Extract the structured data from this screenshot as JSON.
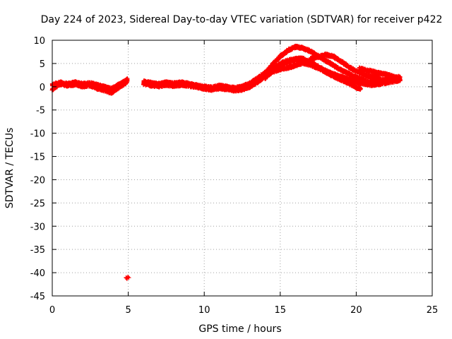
{
  "chart_data": {
    "type": "scatter",
    "title": "Day 224 of 2023, Sidereal Day-to-day VTEC variation (SDTVAR) for receiver p422",
    "xlabel": "GPS time / hours",
    "ylabel": "SDTVAR / TECUs",
    "xlim": [
      0,
      25
    ],
    "ylim": [
      -45,
      10
    ],
    "xticks": [
      0,
      5,
      10,
      15,
      20,
      25
    ],
    "yticks": [
      10,
      5,
      0,
      -5,
      -10,
      -15,
      -20,
      -25,
      -30,
      -35,
      -40,
      -45
    ],
    "grid": true,
    "series": [
      {
        "name": "SDTVAR",
        "color": "#ff0000",
        "marker": "plus",
        "tracks": [
          [
            [
              0.0,
              -0.6
            ],
            [
              0.5,
              0.6
            ],
            [
              1.0,
              0.3
            ],
            [
              1.5,
              0.5
            ],
            [
              2.0,
              0.1
            ],
            [
              2.5,
              0.3
            ],
            [
              3.0,
              -0.4
            ],
            [
              3.5,
              -0.8
            ],
            [
              3.9,
              -1.3
            ],
            [
              4.3,
              -0.3
            ],
            [
              4.7,
              0.5
            ],
            [
              4.95,
              1.2
            ]
          ],
          [
            [
              0.0,
              0.4
            ],
            [
              0.5,
              0.9
            ],
            [
              1.0,
              0.6
            ],
            [
              1.5,
              0.9
            ],
            [
              2.0,
              0.6
            ],
            [
              2.5,
              0.8
            ],
            [
              3.0,
              0.3
            ],
            [
              3.5,
              -0.1
            ],
            [
              3.9,
              -0.5
            ],
            [
              4.3,
              0.3
            ],
            [
              4.7,
              1.0
            ],
            [
              4.95,
              1.6
            ]
          ],
          [
            [
              6.0,
              0.7
            ],
            [
              6.5,
              0.3
            ],
            [
              7.0,
              0.1
            ],
            [
              7.5,
              0.4
            ],
            [
              8.0,
              0.2
            ],
            [
              8.5,
              0.4
            ],
            [
              9.0,
              0.2
            ],
            [
              9.5,
              0.0
            ],
            [
              10.0,
              -0.4
            ],
            [
              10.5,
              -0.6
            ],
            [
              11.0,
              -0.3
            ],
            [
              11.5,
              -0.5
            ],
            [
              12.0,
              -0.8
            ],
            [
              12.5,
              -0.6
            ],
            [
              13.0,
              0.0
            ],
            [
              13.5,
              1.0
            ],
            [
              14.0,
              2.2
            ],
            [
              14.5,
              3.2
            ],
            [
              15.0,
              3.8
            ],
            [
              15.5,
              4.1
            ],
            [
              16.0,
              4.6
            ],
            [
              16.5,
              5.1
            ],
            [
              17.0,
              4.7
            ],
            [
              17.5,
              4.0
            ],
            [
              18.0,
              3.3
            ],
            [
              18.5,
              2.7
            ],
            [
              19.0,
              2.1
            ],
            [
              19.5,
              1.5
            ],
            [
              20.0,
              1.0
            ],
            [
              20.5,
              0.7
            ],
            [
              21.0,
              0.4
            ],
            [
              21.5,
              0.6
            ],
            [
              22.0,
              0.9
            ],
            [
              22.5,
              1.2
            ],
            [
              22.9,
              1.3
            ]
          ],
          [
            [
              6.0,
              1.1
            ],
            [
              6.5,
              0.8
            ],
            [
              7.0,
              0.6
            ],
            [
              7.5,
              0.9
            ],
            [
              8.0,
              0.7
            ],
            [
              8.5,
              0.9
            ],
            [
              9.0,
              0.6
            ],
            [
              9.5,
              0.3
            ],
            [
              10.0,
              0.0
            ],
            [
              10.5,
              -0.2
            ],
            [
              11.0,
              0.2
            ],
            [
              11.5,
              0.0
            ],
            [
              12.0,
              -0.3
            ],
            [
              12.5,
              0.0
            ],
            [
              13.0,
              0.7
            ],
            [
              13.5,
              1.8
            ],
            [
              14.0,
              3.0
            ],
            [
              14.5,
              4.0
            ],
            [
              15.0,
              4.7
            ],
            [
              15.5,
              5.3
            ],
            [
              16.0,
              5.8
            ],
            [
              16.5,
              5.5
            ],
            [
              17.0,
              5.2
            ],
            [
              17.5,
              4.3
            ],
            [
              18.0,
              3.4
            ],
            [
              18.5,
              2.6
            ],
            [
              19.0,
              2.1
            ],
            [
              19.5,
              1.6
            ],
            [
              20.0,
              1.3
            ],
            [
              20.5,
              1.2
            ],
            [
              21.0,
              1.0
            ],
            [
              21.5,
              1.3
            ],
            [
              22.0,
              1.6
            ],
            [
              22.5,
              1.9
            ],
            [
              22.9,
              2.1
            ]
          ],
          [
            [
              13.5,
              1.0
            ],
            [
              14.0,
              2.8
            ],
            [
              14.5,
              4.8
            ],
            [
              15.0,
              6.5
            ],
            [
              15.5,
              7.8
            ],
            [
              16.0,
              8.6
            ],
            [
              16.5,
              8.3
            ],
            [
              17.0,
              7.6
            ],
            [
              17.5,
              6.6
            ],
            [
              18.0,
              5.6
            ],
            [
              18.5,
              4.6
            ],
            [
              19.0,
              3.6
            ],
            [
              19.5,
              2.8
            ],
            [
              20.0,
              2.0
            ],
            [
              20.5,
              1.6
            ]
          ],
          [
            [
              14.0,
              1.8
            ],
            [
              14.5,
              3.6
            ],
            [
              15.0,
              5.0
            ],
            [
              15.5,
              5.6
            ],
            [
              16.0,
              6.0
            ],
            [
              16.5,
              6.0
            ],
            [
              17.0,
              5.3
            ],
            [
              17.5,
              4.2
            ],
            [
              18.0,
              3.1
            ],
            [
              18.5,
              2.3
            ],
            [
              19.0,
              1.5
            ],
            [
              19.5,
              0.8
            ],
            [
              20.0,
              -0.2
            ],
            [
              20.3,
              -0.4
            ]
          ],
          [
            [
              17.0,
              6.0
            ],
            [
              17.5,
              6.4
            ],
            [
              18.0,
              6.9
            ],
            [
              18.5,
              6.5
            ],
            [
              19.0,
              5.5
            ],
            [
              19.5,
              4.3
            ],
            [
              20.0,
              3.3
            ],
            [
              20.5,
              2.6
            ],
            [
              21.0,
              2.1
            ],
            [
              21.5,
              2.0
            ]
          ],
          [
            [
              20.2,
              3.9
            ],
            [
              20.5,
              3.7
            ],
            [
              21.0,
              3.3
            ],
            [
              21.5,
              2.9
            ],
            [
              22.0,
              2.6
            ],
            [
              22.5,
              2.1
            ],
            [
              22.9,
              1.6
            ]
          ]
        ],
        "points": [
          [
            5.0,
            -41.0
          ],
          [
            4.9,
            -41.2
          ]
        ]
      }
    ]
  }
}
